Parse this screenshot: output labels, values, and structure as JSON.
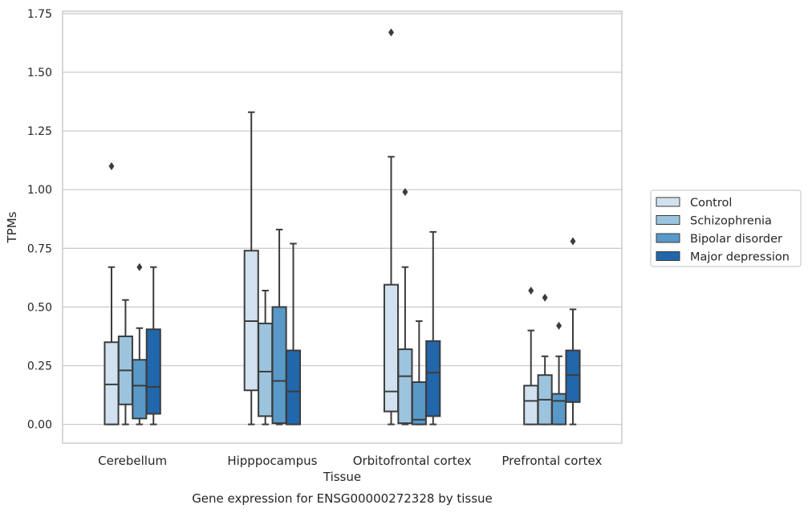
{
  "chart_data": {
    "type": "box",
    "title": "Gene expression for ENSG00000272328 by tissue",
    "xlabel": "Tissue",
    "ylabel": "TPMs",
    "ylim": [
      -0.08,
      1.76
    ],
    "yticks": [
      0.0,
      0.25,
      0.5,
      0.75,
      1.0,
      1.25,
      1.5,
      1.75
    ],
    "ytick_labels": [
      "0.00",
      "0.25",
      "0.50",
      "0.75",
      "1.00",
      "1.25",
      "1.50",
      "1.75"
    ],
    "grid": true,
    "legend_position": "right",
    "categories": [
      "Cerebellum",
      "Hipppocampus",
      "Orbitofrontal cortex",
      "Prefrontal cortex"
    ],
    "series": [
      {
        "name": "Control",
        "color": "#d1e1f0",
        "boxes": [
          {
            "whislo": 0.0,
            "q1": 0.0,
            "med": 0.17,
            "q3": 0.35,
            "whishi": 0.67,
            "fliers": [
              1.1
            ]
          },
          {
            "whislo": 0.0,
            "q1": 0.145,
            "med": 0.44,
            "q3": 0.74,
            "whishi": 1.33,
            "fliers": []
          },
          {
            "whislo": 0.0,
            "q1": 0.055,
            "med": 0.14,
            "q3": 0.595,
            "whishi": 1.14,
            "fliers": [
              1.67
            ]
          },
          {
            "whislo": 0.0,
            "q1": 0.0,
            "med": 0.1,
            "q3": 0.165,
            "whishi": 0.4,
            "fliers": [
              0.57
            ]
          }
        ]
      },
      {
        "name": "Schizophrenia",
        "color": "#9cc4de",
        "boxes": [
          {
            "whislo": 0.0,
            "q1": 0.085,
            "med": 0.23,
            "q3": 0.375,
            "whishi": 0.53,
            "fliers": []
          },
          {
            "whislo": 0.0,
            "q1": 0.035,
            "med": 0.225,
            "q3": 0.43,
            "whishi": 0.57,
            "fliers": []
          },
          {
            "whislo": 0.0,
            "q1": 0.005,
            "med": 0.205,
            "q3": 0.32,
            "whishi": 0.67,
            "fliers": [
              0.99
            ]
          },
          {
            "whislo": 0.0,
            "q1": 0.0,
            "med": 0.105,
            "q3": 0.21,
            "whishi": 0.29,
            "fliers": [
              0.54
            ]
          }
        ]
      },
      {
        "name": "Bipolar disorder",
        "color": "#5999c8",
        "boxes": [
          {
            "whislo": 0.0,
            "q1": 0.025,
            "med": 0.165,
            "q3": 0.275,
            "whishi": 0.41,
            "fliers": [
              0.67
            ]
          },
          {
            "whislo": 0.0,
            "q1": 0.005,
            "med": 0.185,
            "q3": 0.5,
            "whishi": 0.83,
            "fliers": []
          },
          {
            "whislo": 0.0,
            "q1": 0.0,
            "med": 0.02,
            "q3": 0.18,
            "whishi": 0.44,
            "fliers": []
          },
          {
            "whislo": 0.0,
            "q1": 0.0,
            "med": 0.1,
            "q3": 0.13,
            "whishi": 0.29,
            "fliers": [
              0.42
            ]
          }
        ]
      },
      {
        "name": "Major depression",
        "color": "#2266ab",
        "boxes": [
          {
            "whislo": 0.0,
            "q1": 0.045,
            "med": 0.16,
            "q3": 0.405,
            "whishi": 0.67,
            "fliers": []
          },
          {
            "whislo": 0.0,
            "q1": 0.0,
            "med": 0.14,
            "q3": 0.315,
            "whishi": 0.77,
            "fliers": []
          },
          {
            "whislo": 0.0,
            "q1": 0.035,
            "med": 0.22,
            "q3": 0.355,
            "whishi": 0.82,
            "fliers": []
          },
          {
            "whislo": 0.0,
            "q1": 0.095,
            "med": 0.21,
            "q3": 0.315,
            "whishi": 0.49,
            "fliers": [
              0.78
            ]
          }
        ]
      }
    ]
  }
}
